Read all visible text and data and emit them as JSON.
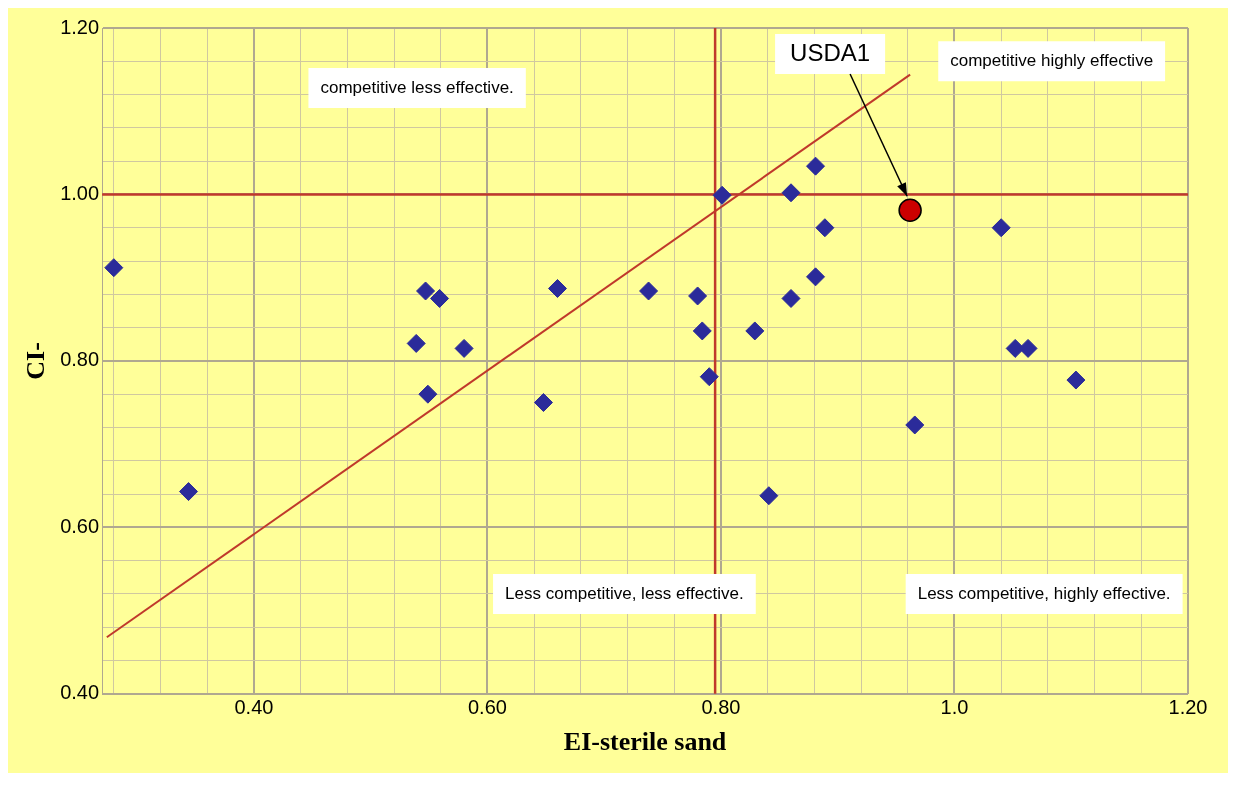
{
  "chart_data": {
    "type": "scatter",
    "xlabel": "EI-sterile sand",
    "ylabel": "CI-",
    "xlim": [
      0.27,
      1.2
    ],
    "ylim": [
      0.4,
      1.2
    ],
    "xticks": [
      {
        "value": 0.28,
        "label": null
      },
      {
        "value": 0.32,
        "label": null
      },
      {
        "value": 0.36,
        "label": null
      },
      "0.40",
      {
        "value": 0.44,
        "label": null
      },
      {
        "value": 0.48,
        "label": null
      },
      {
        "value": 0.52,
        "label": null
      },
      {
        "value": 0.56,
        "label": null
      },
      {
        "value": 0.6,
        "label": "0.60"
      },
      {
        "value": 0.64,
        "label": null
      },
      {
        "value": 0.68,
        "label": null
      },
      {
        "value": 0.72,
        "label": null
      },
      {
        "value": 0.76,
        "label": null
      },
      {
        "value": 0.8,
        "label": "0.80"
      },
      {
        "value": 0.84,
        "label": null
      },
      {
        "value": 0.88,
        "label": null
      },
      {
        "value": 0.92,
        "label": null
      },
      {
        "value": 0.96,
        "label": null
      },
      {
        "value": 1.0,
        "label": "1.0"
      },
      {
        "value": 1.04,
        "label": null
      },
      {
        "value": 1.08,
        "label": null
      },
      {
        "value": 1.12,
        "label": null
      },
      {
        "value": 1.16,
        "label": null
      },
      {
        "value": 1.2,
        "label": "1.20"
      }
    ],
    "yticks": [
      {
        "value": 0.4,
        "label": "0.40"
      },
      {
        "value": 0.44,
        "label": null
      },
      {
        "value": 0.48,
        "label": null
      },
      {
        "value": 0.52,
        "label": null
      },
      {
        "value": 0.56,
        "label": null
      },
      {
        "value": 0.6,
        "label": "0.60"
      },
      {
        "value": 0.64,
        "label": null
      },
      {
        "value": 0.68,
        "label": null
      },
      {
        "value": 0.72,
        "label": null
      },
      {
        "value": 0.76,
        "label": null
      },
      {
        "value": 0.8,
        "label": "0.80"
      },
      {
        "value": 0.84,
        "label": null
      },
      {
        "value": 0.88,
        "label": null
      },
      {
        "value": 0.92,
        "label": null
      },
      {
        "value": 0.96,
        "label": null
      },
      {
        "value": 1.0,
        "label": "1.00"
      },
      {
        "value": 1.04,
        "label": null
      },
      {
        "value": 1.08,
        "label": null
      },
      {
        "value": 1.12,
        "label": null
      },
      {
        "value": 1.16,
        "label": null
      },
      {
        "value": 1.2,
        "label": "1.20"
      }
    ],
    "grid": true,
    "legend": false,
    "series": [
      {
        "marker": "diamond",
        "color": "#2b2b9a",
        "x": [
          0.28,
          0.344,
          0.547,
          0.559,
          0.539,
          0.58,
          0.549,
          0.648,
          0.66,
          0.738,
          0.78,
          0.784,
          0.79,
          0.801,
          0.829,
          0.86,
          0.881,
          0.889,
          0.881,
          0.86,
          0.841,
          0.966,
          1.04,
          1.052,
          1.063,
          1.104
        ],
        "values": [
          0.912,
          0.643,
          0.884,
          0.875,
          0.821,
          0.815,
          0.76,
          0.75,
          0.887,
          0.884,
          0.878,
          0.836,
          0.781,
          0.999,
          0.836,
          1.002,
          1.034,
          0.96,
          0.901,
          0.875,
          0.638,
          0.723,
          0.96,
          0.815,
          0.815,
          0.777
        ]
      },
      {
        "marker": "circle",
        "name": "USDA1",
        "color": "#cc0000",
        "x": [
          0.962
        ],
        "values": [
          0.981
        ]
      },
      {
        "type": "line",
        "marker": "none",
        "color": "#c0392b",
        "x": [
          0.274,
          0.962
        ],
        "values": [
          0.468,
          1.144
        ]
      }
    ],
    "ref_lines": [
      {
        "axis": "y",
        "value": 1.0,
        "color": "#c0392b"
      },
      {
        "axis": "x",
        "value": 0.795,
        "color": "#c0392b"
      }
    ],
    "annotations": [
      "competitive less effective.",
      "competitive highly effective",
      "Less competitive, less effective.",
      "Less competitive, highly effective."
    ]
  }
}
